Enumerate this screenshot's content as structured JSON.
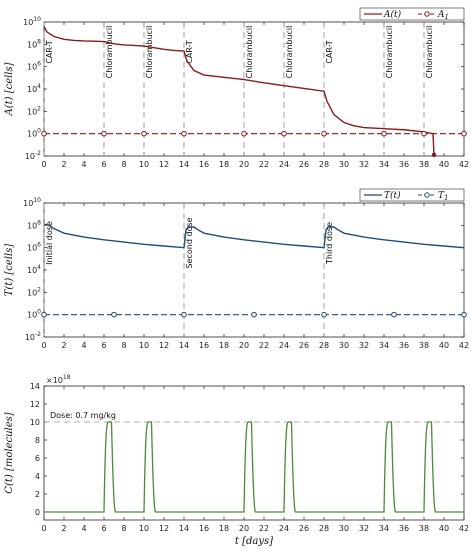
{
  "chart_data": [
    {
      "type": "line",
      "ylabel": "A(t) [cells]",
      "xlim": [
        0,
        42
      ],
      "ylim_log10": [
        -2,
        10
      ],
      "yscale": "log",
      "xticks": [
        0,
        2,
        4,
        6,
        8,
        10,
        12,
        14,
        16,
        18,
        20,
        22,
        24,
        26,
        28,
        30,
        32,
        34,
        36,
        38,
        40,
        42
      ],
      "yticks": [
        "10^{-2}",
        "10^{0}",
        "10^{2}",
        "10^{4}",
        "10^{6}",
        "10^{8}",
        "10^{10}"
      ],
      "legend_position": "top-right",
      "series": [
        {
          "name": "A(t)",
          "color": "#8b1a1a",
          "x": [
            0,
            0.3,
            1,
            2,
            3,
            4,
            5,
            6,
            7,
            8,
            9,
            10,
            11,
            12,
            13,
            14,
            14.3,
            15,
            16,
            18,
            20,
            22,
            24,
            26,
            28,
            28.3,
            29,
            30,
            31,
            32,
            34,
            36,
            38,
            38.9,
            39
          ],
          "y_log10": [
            9.6,
            9.1,
            8.7,
            8.45,
            8.35,
            8.3,
            8.28,
            8.25,
            8.05,
            7.95,
            7.9,
            7.85,
            7.7,
            7.55,
            7.45,
            7.4,
            6.5,
            5.65,
            5.25,
            5.05,
            4.85,
            4.55,
            4.3,
            4.05,
            3.8,
            2.9,
            1.7,
            1.0,
            0.7,
            0.55,
            0.45,
            0.35,
            0.15,
            0.0,
            -1.9
          ]
        },
        {
          "name": "A_1",
          "color": "#8b1a1a",
          "value_log10": 0,
          "marker_x": [
            0,
            6,
            10,
            14,
            20,
            24,
            28,
            34,
            38,
            42
          ]
        }
      ],
      "event_lines": [
        {
          "x": 0,
          "label": "CAR-T"
        },
        {
          "x": 6,
          "label": "Chlorambucil"
        },
        {
          "x": 10,
          "label": "Chlorambucil"
        },
        {
          "x": 14,
          "label": "CAR-T"
        },
        {
          "x": 20,
          "label": "Chlorambucil"
        },
        {
          "x": 24,
          "label": "Chlorambucil"
        },
        {
          "x": 28,
          "label": "CAR-T"
        },
        {
          "x": 34,
          "label": "Chlorambucil"
        },
        {
          "x": 38,
          "label": "Chlorambucil"
        }
      ],
      "legend": [
        {
          "label": "A(t)",
          "style": "solid",
          "color": "#8b1a1a"
        },
        {
          "label": "A_1",
          "style": "dashed-marker",
          "color": "#8b1a1a"
        }
      ]
    },
    {
      "type": "line",
      "ylabel": "T(t) [cells]",
      "xlim": [
        0,
        42
      ],
      "ylim_log10": [
        -2,
        10
      ],
      "yscale": "log",
      "xticks": [
        0,
        2,
        4,
        6,
        8,
        10,
        12,
        14,
        16,
        18,
        20,
        22,
        24,
        26,
        28,
        30,
        32,
        34,
        36,
        38,
        40,
        42
      ],
      "yticks": [
        "10^{-2}",
        "10^{0}",
        "10^{2}",
        "10^{4}",
        "10^{6}",
        "10^{8}",
        "10^{10}"
      ],
      "legend_position": "top-right",
      "series": [
        {
          "name": "T(t)",
          "color": "#1f4e79",
          "x": [
            0,
            0.2,
            0.6,
            1,
            2,
            4,
            6,
            8,
            10,
            12,
            14,
            14.2,
            14.4,
            15,
            15.4,
            16,
            18,
            20,
            22,
            24,
            26,
            28,
            28.2,
            28.4,
            29,
            29.4,
            30,
            32,
            34,
            36,
            38,
            40,
            42
          ],
          "y_log10": [
            8.0,
            8.1,
            7.95,
            7.7,
            7.3,
            6.95,
            6.7,
            6.5,
            6.3,
            6.15,
            6.0,
            7.6,
            7.85,
            7.85,
            7.6,
            7.3,
            6.95,
            6.7,
            6.5,
            6.3,
            6.15,
            6.0,
            7.6,
            7.85,
            7.85,
            7.6,
            7.3,
            6.95,
            6.7,
            6.5,
            6.3,
            6.15,
            6.0
          ]
        },
        {
          "name": "T_1",
          "color": "#1f4e79",
          "value_log10": 0,
          "marker_x": [
            0,
            7,
            14,
            21,
            28,
            35,
            42
          ]
        }
      ],
      "event_lines": [
        {
          "x": 0,
          "label": "Initial dose"
        },
        {
          "x": 14,
          "label": "Second dose"
        },
        {
          "x": 28,
          "label": "Third dose"
        }
      ],
      "legend": [
        {
          "label": "T(t)",
          "style": "solid",
          "color": "#1f4e79"
        },
        {
          "label": "T_1",
          "style": "dashed-marker",
          "color": "#1f4e79"
        }
      ]
    },
    {
      "type": "line",
      "ylabel": "C(t) [molecules]",
      "xlabel": "t [days]",
      "xlim": [
        0,
        42
      ],
      "ylim": [
        0,
        14
      ],
      "y_multiplier": "×10^18",
      "xticks": [
        0,
        2,
        4,
        6,
        8,
        10,
        12,
        14,
        16,
        18,
        20,
        22,
        24,
        26,
        28,
        30,
        32,
        34,
        36,
        38,
        40,
        42
      ],
      "yticks": [
        0,
        2,
        4,
        6,
        8,
        10,
        12,
        14
      ],
      "reference_line": {
        "y": 10,
        "label": "Dose: 0.7 mg/kg"
      },
      "dose_days": [
        6,
        10,
        20,
        24,
        34,
        38
      ],
      "peak_value": 10,
      "series": [
        {
          "name": "C(t)",
          "color": "#4a8a3a"
        }
      ]
    }
  ]
}
